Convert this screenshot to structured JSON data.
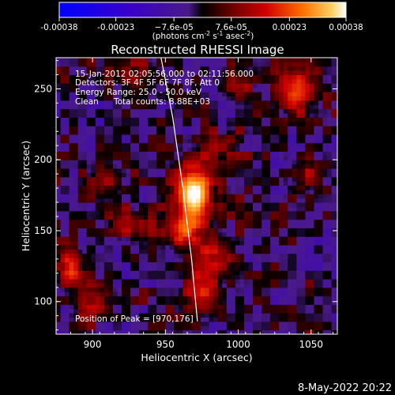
{
  "chart_data": {
    "type": "heatmap",
    "title": "Reconstructed RHESSI Image",
    "xlabel": "Heliocentric X (arcsec)",
    "ylabel": "Heliocentric Y (arcsec)",
    "xlim": [
      875,
      1068
    ],
    "ylim": [
      77,
      272
    ],
    "xticks": [
      {
        "value": 900,
        "label": "900"
      },
      {
        "value": 950,
        "label": "950"
      },
      {
        "value": 1000,
        "label": "1000"
      },
      {
        "value": 1050,
        "label": "1050"
      }
    ],
    "yticks": [
      {
        "value": 100,
        "label": "100"
      },
      {
        "value": 150,
        "label": "150"
      },
      {
        "value": 200,
        "label": "200"
      },
      {
        "value": 250,
        "label": "250"
      }
    ],
    "colorbar": {
      "min": -0.00038,
      "max": 0.00038,
      "ticks": [
        {
          "value": -0.00038,
          "label": "-0.00038"
        },
        {
          "value": -0.00023,
          "label": "-0.00023"
        },
        {
          "value": -7.6e-05,
          "label": "−7.6e-05"
        },
        {
          "value": 7.6e-05,
          "label": "7.6e-05"
        },
        {
          "value": 0.00023,
          "label": "0.00023"
        },
        {
          "value": 0.00038,
          "label": "0.00038"
        }
      ],
      "units_prefix": "(photons cm",
      "units_exp1": "-2",
      "units_mid1": " s",
      "units_exp2": "-1",
      "units_mid2": " asec",
      "units_exp3": "-2",
      "units_suffix": ")"
    },
    "annotations": {
      "time_range": "15-Jan-2012 02:05:56.000 to 02:11:56.000",
      "detectors": "Detectors: 3F 4F 5F 6F 7F 8F, Att 0",
      "energy_range": "Energy Range: 25.0 - 50.0 keV",
      "method": "Clean",
      "total_counts": "Total counts: 8.88E+03",
      "peak_position": "Position of Peak = [970,176]"
    },
    "peak": {
      "x": 970,
      "y": 176
    },
    "hot_spots": [
      {
        "x": 970,
        "y": 176,
        "level": 1.0,
        "sx": 9,
        "sy": 14
      },
      {
        "x": 962,
        "y": 150,
        "level": 0.55,
        "sx": 8,
        "sy": 8
      },
      {
        "x": 985,
        "y": 130,
        "level": 0.45,
        "sx": 10,
        "sy": 10
      },
      {
        "x": 1040,
        "y": 250,
        "level": 0.55,
        "sx": 9,
        "sy": 14
      },
      {
        "x": 925,
        "y": 155,
        "level": 0.4,
        "sx": 10,
        "sy": 8
      },
      {
        "x": 885,
        "y": 125,
        "level": 0.55,
        "sx": 6,
        "sy": 9
      },
      {
        "x": 900,
        "y": 100,
        "level": 0.4,
        "sx": 9,
        "sy": 8
      },
      {
        "x": 975,
        "y": 105,
        "level": 0.45,
        "sx": 8,
        "sy": 10
      },
      {
        "x": 1045,
        "y": 190,
        "level": 0.3,
        "sx": 8,
        "sy": 10
      },
      {
        "x": 990,
        "y": 210,
        "level": 0.3,
        "sx": 10,
        "sy": 8
      },
      {
        "x": 910,
        "y": 185,
        "level": 0.3,
        "sx": 9,
        "sy": 8
      },
      {
        "x": 930,
        "y": 260,
        "level": 0.25,
        "sx": 10,
        "sy": 8
      },
      {
        "x": 1000,
        "y": 255,
        "level": 0.3,
        "sx": 8,
        "sy": 8
      }
    ],
    "limb_curve": [
      {
        "x": 947,
        "y": 272
      },
      {
        "x": 955,
        "y": 230
      },
      {
        "x": 962,
        "y": 180
      },
      {
        "x": 968,
        "y": 130
      },
      {
        "x": 972,
        "y": 86
      }
    ]
  },
  "footer": {
    "date": "8-May-2022 20:22"
  }
}
